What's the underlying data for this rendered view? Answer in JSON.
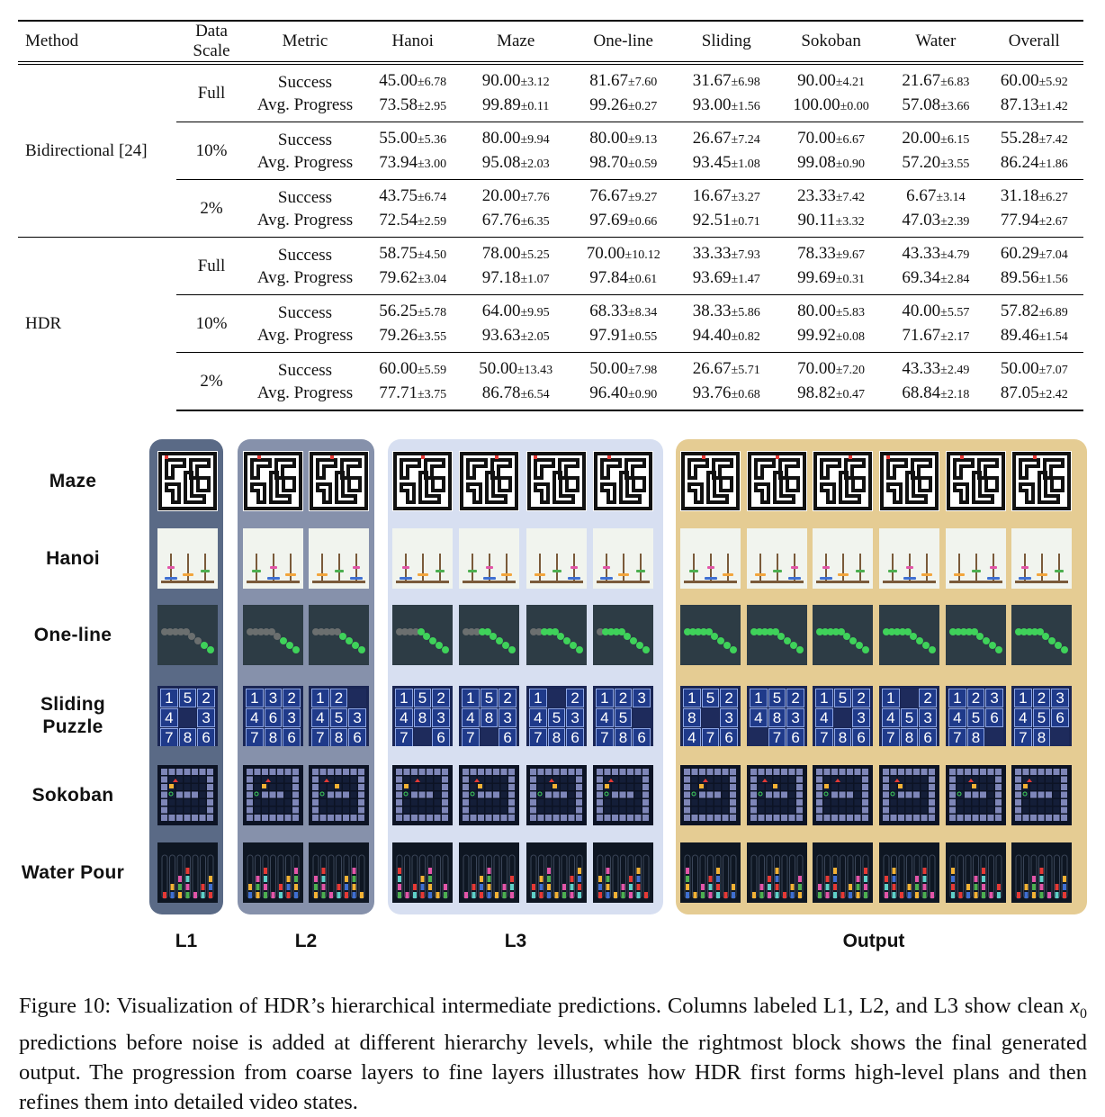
{
  "table": {
    "headers": [
      "Method",
      "Data Scale",
      "Metric",
      "Hanoi",
      "Maze",
      "One-line",
      "Sliding",
      "Sokoban",
      "Water",
      "Overall"
    ],
    "metric_labels": [
      "Success",
      "Avg. Progress"
    ],
    "groups": [
      {
        "method": "Bidirectional [24]",
        "scales": [
          {
            "scale": "Full",
            "success": [
              [
                "45.00",
                "6.78"
              ],
              [
                "90.00",
                "3.12"
              ],
              [
                "81.67",
                "7.60"
              ],
              [
                "31.67",
                "6.98"
              ],
              [
                "90.00",
                "4.21"
              ],
              [
                "21.67",
                "6.83"
              ],
              [
                "60.00",
                "5.92"
              ]
            ],
            "progress": [
              [
                "73.58",
                "2.95"
              ],
              [
                "99.89",
                "0.11"
              ],
              [
                "99.26",
                "0.27"
              ],
              [
                "93.00",
                "1.56"
              ],
              [
                "100.00",
                "0.00"
              ],
              [
                "57.08",
                "3.66"
              ],
              [
                "87.13",
                "1.42"
              ]
            ]
          },
          {
            "scale": "10%",
            "success": [
              [
                "55.00",
                "5.36"
              ],
              [
                "80.00",
                "9.94"
              ],
              [
                "80.00",
                "9.13"
              ],
              [
                "26.67",
                "7.24"
              ],
              [
                "70.00",
                "6.67"
              ],
              [
                "20.00",
                "6.15"
              ],
              [
                "55.28",
                "7.42"
              ]
            ],
            "progress": [
              [
                "73.94",
                "3.00"
              ],
              [
                "95.08",
                "2.03"
              ],
              [
                "98.70",
                "0.59"
              ],
              [
                "93.45",
                "1.08"
              ],
              [
                "99.08",
                "0.90"
              ],
              [
                "57.20",
                "3.55"
              ],
              [
                "86.24",
                "1.86"
              ]
            ]
          },
          {
            "scale": "2%",
            "success": [
              [
                "43.75",
                "6.74"
              ],
              [
                "20.00",
                "7.76"
              ],
              [
                "76.67",
                "9.27"
              ],
              [
                "16.67",
                "3.27"
              ],
              [
                "23.33",
                "7.42"
              ],
              [
                "6.67",
                "3.14"
              ],
              [
                "31.18",
                "6.27"
              ]
            ],
            "progress": [
              [
                "72.54",
                "2.59"
              ],
              [
                "67.76",
                "6.35"
              ],
              [
                "97.69",
                "0.66"
              ],
              [
                "92.51",
                "0.71"
              ],
              [
                "90.11",
                "3.32"
              ],
              [
                "47.03",
                "2.39"
              ],
              [
                "77.94",
                "2.67"
              ]
            ]
          }
        ]
      },
      {
        "method": "HDR",
        "scales": [
          {
            "scale": "Full",
            "success": [
              [
                "58.75",
                "4.50"
              ],
              [
                "78.00",
                "5.25"
              ],
              [
                "70.00",
                "10.12"
              ],
              [
                "33.33",
                "7.93"
              ],
              [
                "78.33",
                "9.67"
              ],
              [
                "43.33",
                "4.79"
              ],
              [
                "60.29",
                "7.04"
              ]
            ],
            "progress": [
              [
                "79.62",
                "3.04"
              ],
              [
                "97.18",
                "1.07"
              ],
              [
                "97.84",
                "0.61"
              ],
              [
                "93.69",
                "1.47"
              ],
              [
                "99.69",
                "0.31"
              ],
              [
                "69.34",
                "2.84"
              ],
              [
                "89.56",
                "1.56"
              ]
            ]
          },
          {
            "scale": "10%",
            "success": [
              [
                "56.25",
                "5.78"
              ],
              [
                "64.00",
                "9.95"
              ],
              [
                "68.33",
                "8.34"
              ],
              [
                "38.33",
                "5.86"
              ],
              [
                "80.00",
                "5.83"
              ],
              [
                "40.00",
                "5.57"
              ],
              [
                "57.82",
                "6.89"
              ]
            ],
            "progress": [
              [
                "79.26",
                "3.55"
              ],
              [
                "93.63",
                "2.05"
              ],
              [
                "97.91",
                "0.55"
              ],
              [
                "94.40",
                "0.82"
              ],
              [
                "99.92",
                "0.08"
              ],
              [
                "71.67",
                "2.17"
              ],
              [
                "89.46",
                "1.54"
              ]
            ]
          },
          {
            "scale": "2%",
            "success": [
              [
                "60.00",
                "5.59"
              ],
              [
                "50.00",
                "13.43"
              ],
              [
                "50.00",
                "7.98"
              ],
              [
                "26.67",
                "5.71"
              ],
              [
                "70.00",
                "7.20"
              ],
              [
                "43.33",
                "2.49"
              ],
              [
                "50.00",
                "7.07"
              ]
            ],
            "progress": [
              [
                "77.71",
                "3.75"
              ],
              [
                "86.78",
                "6.54"
              ],
              [
                "96.40",
                "0.90"
              ],
              [
                "93.76",
                "0.68"
              ],
              [
                "98.82",
                "0.47"
              ],
              [
                "68.84",
                "2.18"
              ],
              [
                "87.05",
                "2.42"
              ]
            ]
          }
        ]
      }
    ]
  },
  "figure": {
    "row_labels": [
      {
        "key": "maze",
        "text": "Maze"
      },
      {
        "key": "hanoi",
        "text": "Hanoi"
      },
      {
        "key": "oneline",
        "text": "One-line"
      },
      {
        "key": "sliding",
        "text": "Sliding\nPuzzle"
      },
      {
        "key": "sokoban",
        "text": "Sokoban"
      },
      {
        "key": "water",
        "text": "Water Pour"
      }
    ],
    "column_labels": [
      "L1",
      "L2",
      "L3",
      "Output"
    ],
    "sliding_states": [
      [
        "1",
        "5",
        "2",
        "4",
        "",
        "3",
        "7",
        "8",
        "6"
      ],
      [
        "1",
        "3",
        "2",
        "4",
        "6",
        "3",
        "7",
        "8",
        "6"
      ],
      [
        "1",
        "2",
        "",
        "4",
        "5",
        "3",
        "7",
        "8",
        "6"
      ],
      [
        "1",
        "5",
        "2",
        "4",
        "8",
        "3",
        "7",
        "",
        "6"
      ],
      [
        "1",
        "5",
        "2",
        "4",
        "8",
        "3",
        "7",
        "",
        "6"
      ],
      [
        "1",
        "",
        "2",
        "4",
        "5",
        "3",
        "7",
        "8",
        "6"
      ],
      [
        "1",
        "2",
        "3",
        "4",
        "5",
        "",
        "7",
        "8",
        "6"
      ],
      [
        "1",
        "5",
        "2",
        "8",
        "",
        "3",
        "4",
        "7",
        "6"
      ],
      [
        "1",
        "5",
        "2",
        "4",
        "8",
        "3",
        "",
        "7",
        "6"
      ],
      [
        "1",
        "5",
        "2",
        "4",
        "",
        "3",
        "7",
        "8",
        "6"
      ],
      [
        "1",
        "",
        "2",
        "4",
        "5",
        "3",
        "7",
        "8",
        "6"
      ],
      [
        "1",
        "2",
        "3",
        "4",
        "5",
        "6",
        "7",
        "8",
        ""
      ],
      [
        "1",
        "2",
        "3",
        "4",
        "5",
        "6",
        "7",
        "8",
        ""
      ]
    ],
    "colors": {
      "l1": "#5a6a86",
      "l2": "#8691ab",
      "l3": "#d7dff1",
      "output": "#e5cc93"
    }
  },
  "caption": {
    "prefix": "Figure 10: Visualization of HDR’s hierarchical intermediate predictions. Columns labeled L1, L2, and L3 show clean ",
    "math_base": "x",
    "math_sub": "0",
    "suffix": " predictions before noise is added at different hierarchy levels, while the rightmost block shows the final generated output. The progression from coarse layers to fine layers illustrates how HDR first forms high-level plans and then refines them into detailed video states."
  }
}
